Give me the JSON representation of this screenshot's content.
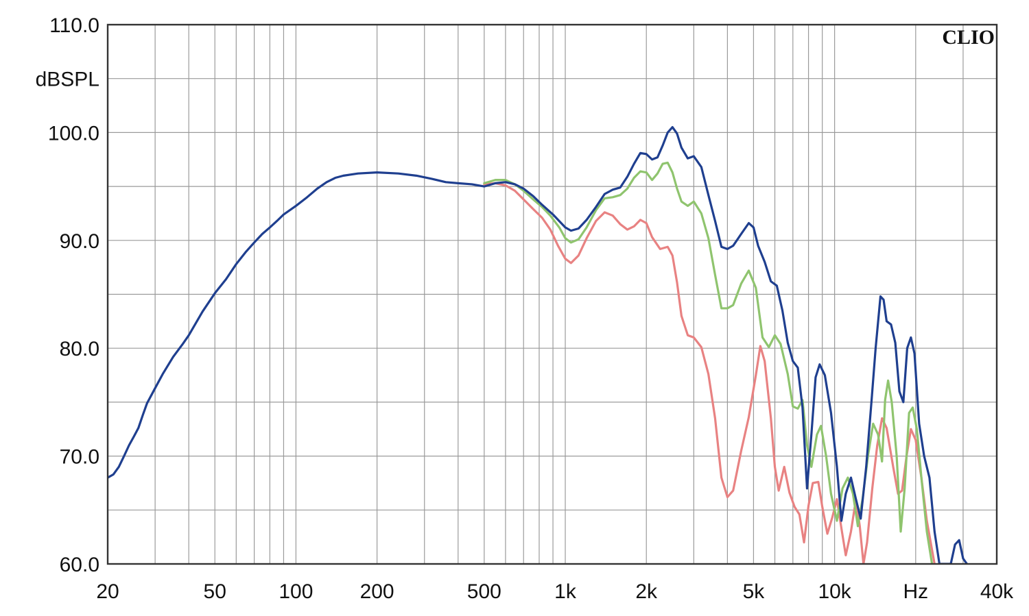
{
  "chart_data": {
    "type": "line",
    "brand": "CLIO",
    "ylabel": "dBSPL",
    "xlabel": "Hz",
    "xscale": "log",
    "xlim": [
      20,
      40000
    ],
    "ylim": [
      60,
      110
    ],
    "grid": true,
    "legend": "none",
    "x_ticks": [
      {
        "value": 20,
        "label": "20"
      },
      {
        "value": 50,
        "label": "50"
      },
      {
        "value": 100,
        "label": "100"
      },
      {
        "value": 200,
        "label": "200"
      },
      {
        "value": 500,
        "label": "500"
      },
      {
        "value": 1000,
        "label": "1k"
      },
      {
        "value": 2000,
        "label": "2k"
      },
      {
        "value": 5000,
        "label": "5k"
      },
      {
        "value": 10000,
        "label": "10k"
      },
      {
        "value": 40000,
        "label": "40k"
      }
    ],
    "y_ticks": [
      {
        "value": 60,
        "label": "60.0"
      },
      {
        "value": 70,
        "label": "70.0"
      },
      {
        "value": 80,
        "label": "80.0"
      },
      {
        "value": 90,
        "label": "90.0"
      },
      {
        "value": 100,
        "label": "100.0"
      },
      {
        "value": 110,
        "label": "110.0"
      }
    ],
    "series": [
      {
        "color": "#e88282",
        "points": [
          [
            500,
            95.2
          ],
          [
            550,
            95.3
          ],
          [
            600,
            95.1
          ],
          [
            650,
            94.6
          ],
          [
            700,
            93.8
          ],
          [
            760,
            92.9
          ],
          [
            820,
            92.1
          ],
          [
            880,
            91.0
          ],
          [
            940,
            89.5
          ],
          [
            1000,
            88.3
          ],
          [
            1050,
            87.9
          ],
          [
            1120,
            88.6
          ],
          [
            1200,
            90.2
          ],
          [
            1300,
            91.8
          ],
          [
            1400,
            92.6
          ],
          [
            1500,
            92.3
          ],
          [
            1600,
            91.5
          ],
          [
            1700,
            91.0
          ],
          [
            1800,
            91.3
          ],
          [
            1900,
            91.9
          ],
          [
            2000,
            91.6
          ],
          [
            2100,
            90.3
          ],
          [
            2250,
            89.2
          ],
          [
            2400,
            89.4
          ],
          [
            2500,
            88.6
          ],
          [
            2600,
            86.1
          ],
          [
            2700,
            83.0
          ],
          [
            2850,
            81.2
          ],
          [
            3000,
            81.0
          ],
          [
            3200,
            80.1
          ],
          [
            3400,
            77.6
          ],
          [
            3600,
            73.5
          ],
          [
            3800,
            68.0
          ],
          [
            4000,
            66.2
          ],
          [
            4200,
            66.8
          ],
          [
            4500,
            70.5
          ],
          [
            4800,
            73.6
          ],
          [
            5100,
            77.5
          ],
          [
            5300,
            80.2
          ],
          [
            5500,
            78.8
          ],
          [
            5800,
            73.5
          ],
          [
            6000,
            69.0
          ],
          [
            6200,
            66.8
          ],
          [
            6500,
            69.0
          ],
          [
            6800,
            66.6
          ],
          [
            7100,
            65.3
          ],
          [
            7400,
            64.6
          ],
          [
            7700,
            62.0
          ],
          [
            8000,
            65.4
          ],
          [
            8300,
            67.5
          ],
          [
            8700,
            67.6
          ],
          [
            9000,
            65.3
          ],
          [
            9400,
            62.8
          ],
          [
            9800,
            64.3
          ],
          [
            10200,
            66.0
          ],
          [
            10600,
            63.3
          ],
          [
            11000,
            60.8
          ],
          [
            11500,
            63.0
          ],
          [
            12000,
            66.0
          ],
          [
            12400,
            63.5
          ],
          [
            12800,
            60.0
          ],
          [
            13200,
            62.0
          ],
          [
            13800,
            67.0
          ],
          [
            14400,
            71.0
          ],
          [
            15000,
            73.5
          ],
          [
            15600,
            72.6
          ],
          [
            16500,
            69.0
          ],
          [
            17200,
            66.5
          ],
          [
            17800,
            66.8
          ],
          [
            18500,
            70.0
          ],
          [
            19200,
            72.5
          ],
          [
            20000,
            71.5
          ],
          [
            21000,
            68.0
          ],
          [
            22000,
            64.0
          ],
          [
            23500,
            60.0
          ]
        ]
      },
      {
        "color": "#8fc46e",
        "points": [
          [
            500,
            95.3
          ],
          [
            550,
            95.6
          ],
          [
            600,
            95.6
          ],
          [
            650,
            95.2
          ],
          [
            700,
            94.6
          ],
          [
            760,
            93.8
          ],
          [
            820,
            93.1
          ],
          [
            880,
            92.3
          ],
          [
            950,
            91.2
          ],
          [
            1000,
            90.2
          ],
          [
            1050,
            89.8
          ],
          [
            1120,
            90.1
          ],
          [
            1200,
            91.2
          ],
          [
            1300,
            92.8
          ],
          [
            1400,
            93.9
          ],
          [
            1500,
            94.0
          ],
          [
            1600,
            94.2
          ],
          [
            1700,
            94.8
          ],
          [
            1800,
            95.8
          ],
          [
            1900,
            96.4
          ],
          [
            2000,
            96.3
          ],
          [
            2100,
            95.6
          ],
          [
            2200,
            96.2
          ],
          [
            2300,
            97.1
          ],
          [
            2400,
            97.2
          ],
          [
            2500,
            96.3
          ],
          [
            2600,
            94.8
          ],
          [
            2700,
            93.6
          ],
          [
            2850,
            93.2
          ],
          [
            3000,
            93.6
          ],
          [
            3200,
            92.5
          ],
          [
            3400,
            90.2
          ],
          [
            3600,
            86.8
          ],
          [
            3800,
            83.7
          ],
          [
            4000,
            83.7
          ],
          [
            4200,
            84.0
          ],
          [
            4500,
            86.0
          ],
          [
            4800,
            87.2
          ],
          [
            5100,
            85.6
          ],
          [
            5400,
            81.0
          ],
          [
            5700,
            80.1
          ],
          [
            6000,
            81.2
          ],
          [
            6300,
            80.4
          ],
          [
            6700,
            77.6
          ],
          [
            7000,
            74.6
          ],
          [
            7300,
            74.4
          ],
          [
            7600,
            75.2
          ],
          [
            7900,
            71.0
          ],
          [
            8200,
            69.0
          ],
          [
            8600,
            72.0
          ],
          [
            8900,
            72.8
          ],
          [
            9300,
            70.0
          ],
          [
            9700,
            66.5
          ],
          [
            10200,
            64.0
          ],
          [
            10700,
            67.0
          ],
          [
            11200,
            68.0
          ],
          [
            11700,
            66.5
          ],
          [
            12200,
            63.5
          ],
          [
            12700,
            66.0
          ],
          [
            13300,
            70.0
          ],
          [
            13900,
            73.0
          ],
          [
            14500,
            72.0
          ],
          [
            15000,
            69.5
          ],
          [
            15400,
            75.2
          ],
          [
            15800,
            77.0
          ],
          [
            16300,
            75.0
          ],
          [
            17000,
            70.0
          ],
          [
            17600,
            63.0
          ],
          [
            18200,
            67.0
          ],
          [
            18900,
            74.0
          ],
          [
            19500,
            74.5
          ],
          [
            20200,
            72.5
          ],
          [
            21000,
            68.0
          ],
          [
            22000,
            63.0
          ],
          [
            23000,
            60.0
          ]
        ]
      },
      {
        "color": "#1f3f8f",
        "points": [
          [
            20,
            68.0
          ],
          [
            21,
            68.3
          ],
          [
            22,
            69.0
          ],
          [
            23,
            70.0
          ],
          [
            24,
            71.0
          ],
          [
            25,
            71.8
          ],
          [
            26,
            72.6
          ],
          [
            27,
            73.8
          ],
          [
            28,
            74.9
          ],
          [
            30,
            76.3
          ],
          [
            32,
            77.6
          ],
          [
            35,
            79.2
          ],
          [
            38,
            80.4
          ],
          [
            40,
            81.2
          ],
          [
            45,
            83.4
          ],
          [
            50,
            85.1
          ],
          [
            55,
            86.4
          ],
          [
            60,
            87.8
          ],
          [
            65,
            88.9
          ],
          [
            70,
            89.8
          ],
          [
            75,
            90.6
          ],
          [
            80,
            91.2
          ],
          [
            85,
            91.8
          ],
          [
            90,
            92.4
          ],
          [
            100,
            93.2
          ],
          [
            110,
            94.0
          ],
          [
            120,
            94.8
          ],
          [
            130,
            95.4
          ],
          [
            140,
            95.8
          ],
          [
            150,
            96.0
          ],
          [
            170,
            96.2
          ],
          [
            200,
            96.3
          ],
          [
            240,
            96.2
          ],
          [
            280,
            96.0
          ],
          [
            320,
            95.7
          ],
          [
            360,
            95.4
          ],
          [
            400,
            95.3
          ],
          [
            450,
            95.2
          ],
          [
            500,
            95.0
          ],
          [
            550,
            95.3
          ],
          [
            600,
            95.4
          ],
          [
            650,
            95.2
          ],
          [
            700,
            94.8
          ],
          [
            760,
            94.1
          ],
          [
            820,
            93.3
          ],
          [
            900,
            92.4
          ],
          [
            1000,
            91.2
          ],
          [
            1050,
            90.9
          ],
          [
            1120,
            91.1
          ],
          [
            1200,
            91.9
          ],
          [
            1300,
            93.1
          ],
          [
            1400,
            94.3
          ],
          [
            1500,
            94.7
          ],
          [
            1600,
            94.9
          ],
          [
            1700,
            95.9
          ],
          [
            1800,
            97.1
          ],
          [
            1900,
            98.1
          ],
          [
            2000,
            98.0
          ],
          [
            2100,
            97.5
          ],
          [
            2200,
            97.7
          ],
          [
            2300,
            98.8
          ],
          [
            2400,
            100.0
          ],
          [
            2500,
            100.5
          ],
          [
            2600,
            99.9
          ],
          [
            2700,
            98.6
          ],
          [
            2850,
            97.6
          ],
          [
            3000,
            97.8
          ],
          [
            3200,
            96.8
          ],
          [
            3400,
            94.2
          ],
          [
            3600,
            91.8
          ],
          [
            3800,
            89.4
          ],
          [
            4000,
            89.2
          ],
          [
            4200,
            89.5
          ],
          [
            4500,
            90.6
          ],
          [
            4800,
            91.6
          ],
          [
            5000,
            91.2
          ],
          [
            5200,
            89.5
          ],
          [
            5500,
            88.0
          ],
          [
            5800,
            86.2
          ],
          [
            6100,
            85.8
          ],
          [
            6400,
            83.5
          ],
          [
            6700,
            80.5
          ],
          [
            7000,
            78.8
          ],
          [
            7300,
            78.2
          ],
          [
            7600,
            74.5
          ],
          [
            7900,
            67.0
          ],
          [
            8200,
            72.0
          ],
          [
            8500,
            77.3
          ],
          [
            8800,
            78.5
          ],
          [
            9200,
            77.5
          ],
          [
            9700,
            74.0
          ],
          [
            10200,
            69.0
          ],
          [
            10600,
            64.0
          ],
          [
            11000,
            66.5
          ],
          [
            11500,
            68.0
          ],
          [
            12000,
            66.0
          ],
          [
            12500,
            64.2
          ],
          [
            13100,
            69.0
          ],
          [
            13700,
            75.0
          ],
          [
            14200,
            80.0
          ],
          [
            14800,
            84.8
          ],
          [
            15200,
            84.5
          ],
          [
            15600,
            82.5
          ],
          [
            16200,
            82.2
          ],
          [
            16800,
            80.5
          ],
          [
            17400,
            76.0
          ],
          [
            18000,
            75.0
          ],
          [
            18600,
            80.0
          ],
          [
            19200,
            81.0
          ],
          [
            19800,
            79.5
          ],
          [
            20600,
            73.0
          ],
          [
            21500,
            70.0
          ],
          [
            22500,
            68.0
          ],
          [
            23500,
            63.0
          ],
          [
            24500,
            60.0
          ],
          [
            27000,
            60.0
          ],
          [
            28000,
            61.8
          ],
          [
            29000,
            62.2
          ],
          [
            30000,
            60.5
          ],
          [
            31000,
            60.0
          ]
        ]
      }
    ]
  }
}
